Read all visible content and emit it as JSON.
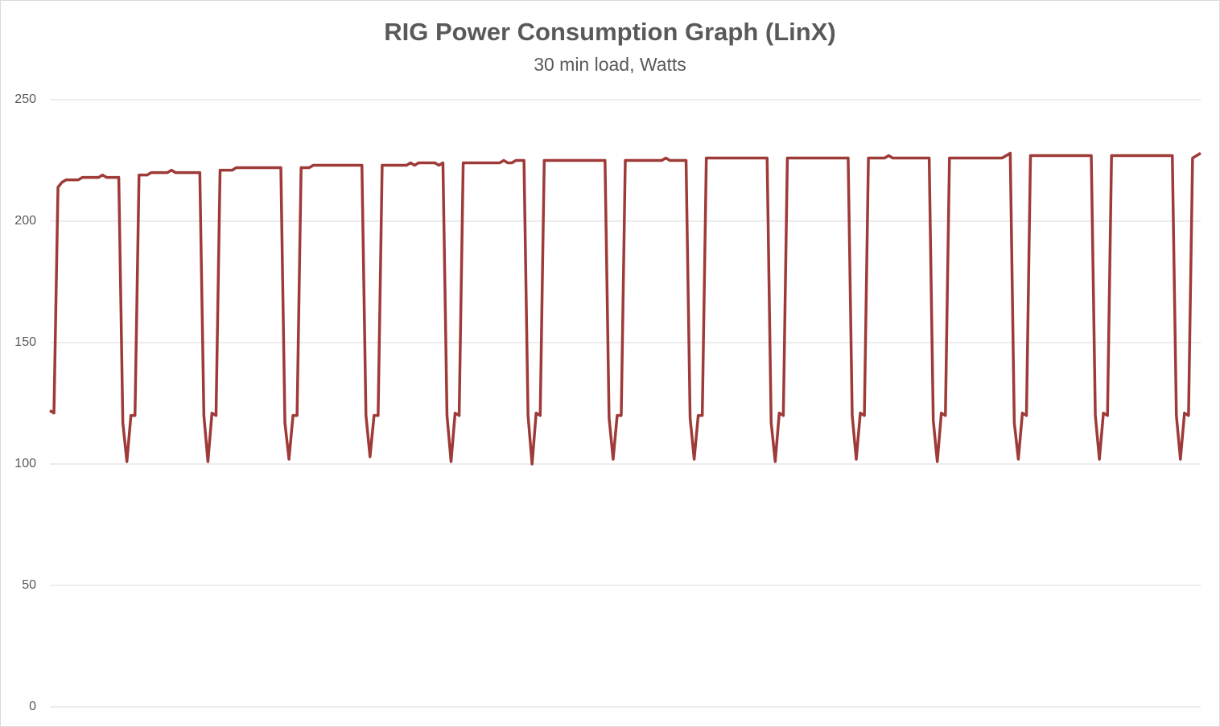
{
  "chart_data": {
    "type": "line",
    "title": "RIG Power Consumption Graph (LinX)",
    "subtitle": "30 min load, Watts",
    "ylim": [
      0,
      250
    ],
    "yticks": [
      0,
      50,
      100,
      150,
      200,
      250
    ],
    "grid": true,
    "series": [
      {
        "name": null,
        "color": "#9e3a38",
        "values": [
          122,
          121,
          214,
          216,
          217,
          217,
          217,
          217,
          218,
          218,
          218,
          218,
          218,
          219,
          218,
          218,
          218,
          218,
          117,
          101,
          120,
          120,
          219,
          219,
          219,
          220,
          220,
          220,
          220,
          220,
          221,
          220,
          220,
          220,
          220,
          220,
          220,
          220,
          120,
          101,
          121,
          120,
          221,
          221,
          221,
          221,
          222,
          222,
          222,
          222,
          222,
          222,
          222,
          222,
          222,
          222,
          222,
          222,
          117,
          102,
          120,
          120,
          222,
          222,
          222,
          223,
          223,
          223,
          223,
          223,
          223,
          223,
          223,
          223,
          223,
          223,
          223,
          223,
          120,
          103,
          120,
          120,
          223,
          223,
          223,
          223,
          223,
          223,
          223,
          224,
          223,
          224,
          224,
          224,
          224,
          224,
          223,
          224,
          120,
          101,
          121,
          120,
          224,
          224,
          224,
          224,
          224,
          224,
          224,
          224,
          224,
          224,
          225,
          224,
          224,
          225,
          225,
          225,
          120,
          100,
          121,
          120,
          225,
          225,
          225,
          225,
          225,
          225,
          225,
          225,
          225,
          225,
          225,
          225,
          225,
          225,
          225,
          225,
          119,
          102,
          120,
          120,
          225,
          225,
          225,
          225,
          225,
          225,
          225,
          225,
          225,
          225,
          226,
          225,
          225,
          225,
          225,
          225,
          119,
          102,
          120,
          120,
          226,
          226,
          226,
          226,
          226,
          226,
          226,
          226,
          226,
          226,
          226,
          226,
          226,
          226,
          226,
          226,
          117,
          101,
          121,
          120,
          226,
          226,
          226,
          226,
          226,
          226,
          226,
          226,
          226,
          226,
          226,
          226,
          226,
          226,
          226,
          226,
          120,
          102,
          121,
          120,
          226,
          226,
          226,
          226,
          226,
          227,
          226,
          226,
          226,
          226,
          226,
          226,
          226,
          226,
          226,
          226,
          118,
          101,
          121,
          120,
          226,
          226,
          226,
          226,
          226,
          226,
          226,
          226,
          226,
          226,
          226,
          226,
          226,
          226,
          227,
          228,
          117,
          102,
          121,
          120,
          227,
          227,
          227,
          227,
          227,
          227,
          227,
          227,
          227,
          227,
          227,
          227,
          227,
          227,
          227,
          227,
          120,
          102,
          121,
          120,
          227,
          227,
          227,
          227,
          227,
          227,
          227,
          227,
          227,
          227,
          227,
          227,
          227,
          227,
          227,
          227,
          120,
          102,
          121,
          120,
          226,
          227,
          228
        ]
      }
    ]
  }
}
